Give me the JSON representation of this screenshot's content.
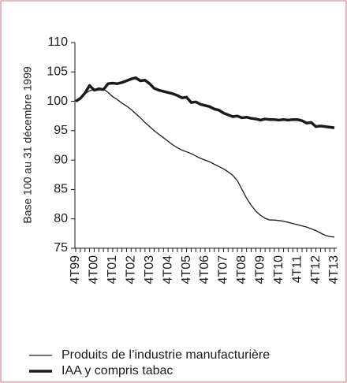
{
  "chart_data": {
    "type": "line",
    "y_label": "Base 100 au 31 décembre 1999",
    "categories": [
      "4T99",
      null,
      null,
      null,
      "4T00",
      null,
      null,
      null,
      "4T01",
      null,
      null,
      null,
      "4T02",
      null,
      null,
      null,
      "4T03",
      null,
      null,
      null,
      "4T04",
      null,
      null,
      null,
      "4T05",
      null,
      null,
      null,
      "4T06",
      null,
      null,
      null,
      "4T07",
      null,
      null,
      null,
      "4T08",
      null,
      null,
      null,
      "4T09",
      null,
      null,
      null,
      "4T10",
      null,
      null,
      null,
      "4T11",
      null,
      null,
      null,
      "4T12",
      null,
      null,
      null,
      "4T13"
    ],
    "series": [
      {
        "name": "Produits de l’industrie manufacturière",
        "color": "#1a1a1a",
        "width": 1.3,
        "values": [
          100,
          100.6,
          101.3,
          101.8,
          102.0,
          102.3,
          102.1,
          101.5,
          100.8,
          100.3,
          99.7,
          99.2,
          98.6,
          97.9,
          97.2,
          96.4,
          95.7,
          95.0,
          94.4,
          93.8,
          93.2,
          92.6,
          92.1,
          91.7,
          91.4,
          91.1,
          90.7,
          90.3,
          90.0,
          89.7,
          89.3,
          88.9,
          88.5,
          88.0,
          87.4,
          86.5,
          85.0,
          83.5,
          82.3,
          81.3,
          80.6,
          80.1,
          79.8,
          79.8,
          79.7,
          79.6,
          79.4,
          79.2,
          79.0,
          78.8,
          78.6,
          78.3,
          78.0,
          77.6,
          77.2,
          77.0,
          76.9
        ]
      },
      {
        "name": "IAA y compris tabac",
        "color": "#1a1a1a",
        "width": 3.5,
        "values": [
          100,
          100.5,
          101.4,
          102.7,
          101.9,
          102.1,
          102.0,
          103.0,
          103.1,
          103.0,
          103.2,
          103.5,
          103.8,
          104.0,
          103.5,
          103.6,
          103.0,
          102.2,
          101.9,
          101.7,
          101.5,
          101.3,
          101.0,
          100.6,
          100.7,
          99.8,
          99.9,
          99.5,
          99.3,
          99.1,
          98.7,
          98.5,
          98.0,
          97.7,
          97.4,
          97.5,
          97.2,
          97.3,
          97.1,
          97.0,
          96.8,
          97.0,
          96.9,
          96.9,
          96.8,
          96.9,
          96.8,
          96.9,
          96.9,
          96.7,
          96.3,
          96.4,
          95.7,
          95.8,
          95.7,
          95.6,
          95.5
        ]
      }
    ],
    "ylim": [
      75,
      110
    ],
    "yticks": [
      75,
      80,
      85,
      90,
      95,
      100,
      105,
      110
    ],
    "grid": false
  }
}
